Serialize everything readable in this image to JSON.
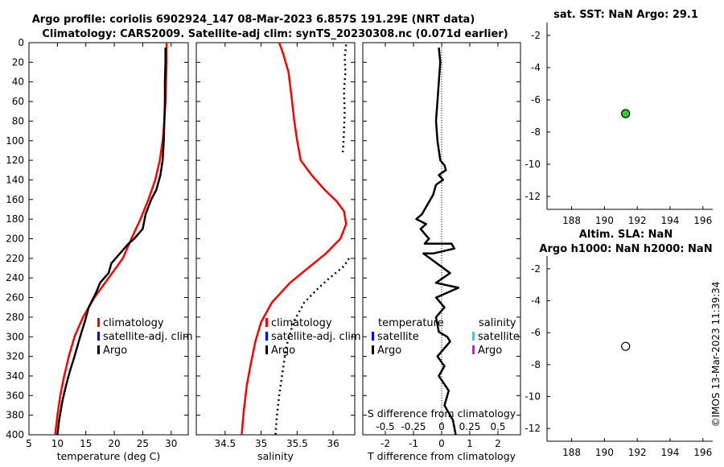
{
  "title_line1": "Argo profile: coriolis 6902924_147 08-Mar-2023 6.857S 191.29E (NRT data)",
  "title_line2": "Climatology: CARS2009. Satellite-adj clim: synTS_20230308.nc (0.071d earlier)",
  "timestamp": "©IMOS 13-Mar-2023 11:39:34",
  "colors": {
    "climatology": "#ff0000",
    "satellite_adj": "#0000ff",
    "argo": "#000000",
    "salinity_satellite": "#00e5ff",
    "salinity_argo": "#ff00ff",
    "sst_marker": "#33cc33"
  },
  "chart_data": [
    {
      "id": "temperature",
      "type": "line",
      "xlabel": "temperature (deg C)",
      "xlim": [
        5,
        33
      ],
      "xticks": [
        5,
        10,
        15,
        20,
        25,
        30
      ],
      "ylim": [
        400,
        0
      ],
      "yticks": [
        0,
        20,
        40,
        60,
        80,
        100,
        120,
        140,
        160,
        180,
        200,
        220,
        240,
        260,
        280,
        300,
        320,
        340,
        360,
        380,
        400
      ],
      "legend": [
        "climatology",
        "satellite-adj. clim",
        "Argo"
      ],
      "legend_placement": "lower-right",
      "series": [
        {
          "name": "climatology",
          "color": "#ff0000",
          "style": "solid",
          "x": [
            29.2,
            29.2,
            29.1,
            29.0,
            28.8,
            28.5,
            28.0,
            27.2,
            26.0,
            24.6,
            23.0,
            21.5,
            19.0,
            16.5,
            14.5,
            13.0,
            12.0,
            11.2,
            10.5,
            10.0,
            9.6
          ],
          "y": [
            0,
            20,
            40,
            60,
            80,
            100,
            120,
            140,
            160,
            180,
            200,
            220,
            240,
            260,
            280,
            300,
            320,
            340,
            360,
            380,
            400
          ]
        },
        {
          "name": "Argo",
          "color": "#000000",
          "style": "solid",
          "x": [
            29.0,
            29.0,
            28.9,
            28.9,
            28.8,
            28.7,
            28.5,
            28.1,
            27.4,
            26.5,
            25.5,
            25.0,
            23.5,
            22.5,
            21.0,
            19.5,
            19.0,
            17.5,
            16.8,
            15.5,
            14.8,
            14.0,
            13.5,
            13.0,
            12.2,
            11.5,
            10.9,
            10.3,
            10.0
          ],
          "y": [
            5,
            20,
            40,
            60,
            80,
            100,
            120,
            135,
            150,
            160,
            175,
            190,
            200,
            205,
            215,
            225,
            235,
            245,
            255,
            270,
            285,
            300,
            310,
            320,
            335,
            350,
            365,
            385,
            400
          ]
        }
      ]
    },
    {
      "id": "salinity",
      "type": "line",
      "xlabel": "salinity",
      "xlim": [
        34.1,
        36.3
      ],
      "xticks": [
        34.5,
        35,
        35.5,
        36
      ],
      "ylim": [
        400,
        0
      ],
      "legend": [
        "climatology",
        "satellite-adj. clim",
        "Argo"
      ],
      "legend_placement": "lower-left",
      "series": [
        {
          "name": "climatology",
          "color": "#ff0000",
          "style": "solid",
          "x": [
            35.25,
            35.3,
            35.38,
            35.43,
            35.46,
            35.5,
            35.55,
            35.7,
            35.88,
            36.05,
            36.15,
            36.18,
            36.1,
            35.9,
            35.65,
            35.4,
            35.15,
            35.0,
            34.92,
            34.85,
            34.8,
            34.76,
            34.73
          ],
          "y": [
            0,
            10,
            30,
            60,
            80,
            100,
            120,
            135,
            150,
            162,
            172,
            185,
            200,
            215,
            230,
            245,
            265,
            285,
            305,
            330,
            350,
            375,
            400
          ]
        },
        {
          "name": "Argo (upper)",
          "color": "#000000",
          "style": "dotted",
          "x": [
            36.18,
            36.16,
            36.17,
            36.15,
            36.16,
            36.15,
            36.14,
            36.13
          ],
          "y": [
            2,
            15,
            30,
            50,
            70,
            90,
            105,
            115
          ]
        },
        {
          "name": "Argo (lower)",
          "color": "#000000",
          "style": "dotted",
          "x": [
            36.22,
            36.15,
            35.95,
            35.8,
            35.6,
            35.45,
            35.35,
            35.3,
            35.25,
            35.22,
            35.2
          ],
          "y": [
            220,
            228,
            240,
            250,
            265,
            285,
            310,
            335,
            360,
            380,
            400
          ]
        }
      ]
    },
    {
      "id": "difference",
      "type": "line",
      "xlabel": "T difference from climatology",
      "xlabel_top": "S difference from climatology",
      "xlim": [
        -2.8,
        2.8
      ],
      "xticks": [
        -2,
        -1,
        0,
        1,
        2
      ],
      "xticks_top_labels": [
        "-0.5",
        "-0.25",
        "0",
        "0.25",
        "0.5"
      ],
      "ylim": [
        400,
        0
      ],
      "legend_left_title": "temperature",
      "legend_left": [
        "satellite",
        "Argo"
      ],
      "legend_right_title": "salinity",
      "legend_right": [
        "satellite",
        "Argo"
      ],
      "series": [
        {
          "name": "T difference",
          "color": "#000000",
          "style": "solid",
          "x": [
            -0.1,
            -0.05,
            -0.1,
            -0.15,
            -0.2,
            -0.15,
            -0.05,
            0.1,
            0.15,
            -0.1,
            0.05,
            -0.2,
            -0.3,
            -0.5,
            -0.7,
            -0.9,
            -0.55,
            -0.75,
            -0.6,
            -0.45,
            -0.6,
            0.35,
            0.45,
            -0.3,
            -0.65,
            0.3,
            -0.2,
            0.6,
            -0.2,
            0.1,
            -0.2,
            -0.1,
            0.2,
            0.3,
            -0.15,
            0.1,
            -0.1,
            0.25,
            0.1,
            0.4,
            0.5
          ],
          "y": [
            5,
            20,
            40,
            60,
            80,
            100,
            120,
            125,
            130,
            135,
            140,
            145,
            155,
            165,
            175,
            180,
            185,
            190,
            195,
            200,
            205,
            205,
            210,
            215,
            215,
            235,
            245,
            250,
            260,
            270,
            280,
            295,
            300,
            305,
            320,
            330,
            340,
            355,
            370,
            385,
            400
          ]
        }
      ]
    },
    {
      "id": "sst_map",
      "type": "scatter",
      "title": "sat. SST: NaN Argo: 29.1",
      "xlim": [
        186.5,
        196.6
      ],
      "xticks": [
        188,
        190,
        192,
        194,
        196
      ],
      "ylim": [
        -12.8,
        -1.2
      ],
      "yticks": [
        -2,
        -4,
        -6,
        -8,
        -10,
        -12
      ],
      "points": [
        {
          "x": 191.29,
          "y": -6.857,
          "fill": "#33cc33"
        }
      ]
    },
    {
      "id": "sla_map",
      "type": "scatter",
      "title_line1": "Altim. SLA: NaN",
      "title_line2": "Argo h1000: NaN h2000: NaN",
      "xlim": [
        186.5,
        196.6
      ],
      "xticks": [
        188,
        190,
        192,
        194,
        196
      ],
      "ylim": [
        -12.8,
        -1.2
      ],
      "yticks": [
        -2,
        -4,
        -6,
        -8,
        -10,
        -12
      ],
      "points": [
        {
          "x": 191.29,
          "y": -6.857,
          "fill": "#ffffff"
        }
      ]
    }
  ]
}
